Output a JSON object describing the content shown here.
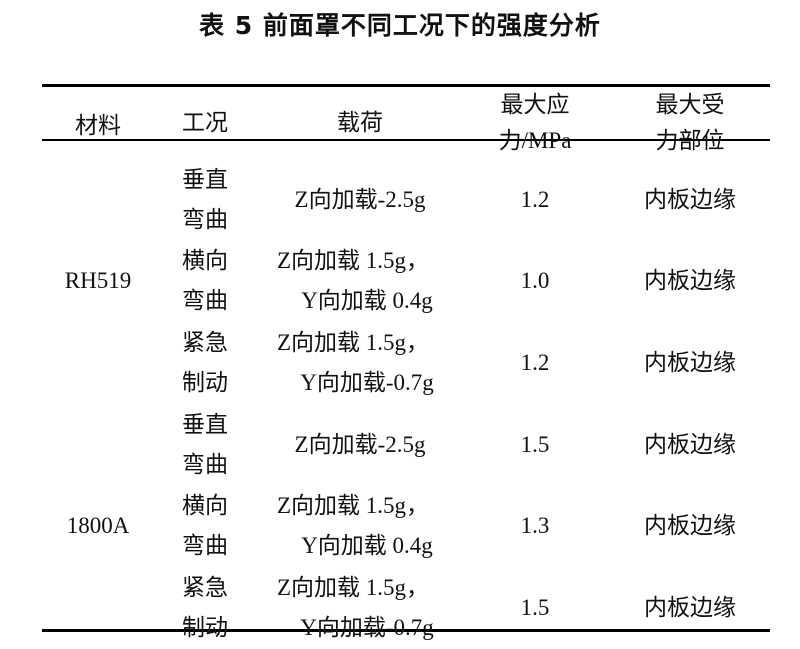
{
  "title": "表 5  前面罩不同工况下的强度分析",
  "headers": {
    "material": "材料",
    "condition": "工况",
    "load": "载荷",
    "stress": [
      "最大应",
      "力/MPa"
    ],
    "position": [
      "最大受",
      "力部位"
    ]
  },
  "rows": [
    {
      "material": "RH519",
      "condition": [
        "垂直",
        "弯曲"
      ],
      "load": [
        "Z向加载-2.5g"
      ],
      "stress": "1.2",
      "position": "内板边缘"
    },
    {
      "material": "RH519",
      "condition": [
        "横向",
        "弯曲"
      ],
      "load": [
        "Z向加载 1.5g，",
        "Y向加载 0.4g"
      ],
      "stress": "1.0",
      "position": "内板边缘"
    },
    {
      "material": "RH519",
      "condition": [
        "紧急",
        "制动"
      ],
      "load": [
        "Z向加载 1.5g，",
        "Y向加载-0.7g"
      ],
      "stress": "1.2",
      "position": "内板边缘"
    },
    {
      "material": "1800A",
      "condition": [
        "垂直",
        "弯曲"
      ],
      "load": [
        "Z向加载-2.5g"
      ],
      "stress": "1.5",
      "position": "内板边缘"
    },
    {
      "material": "1800A",
      "condition": [
        "横向",
        "弯曲"
      ],
      "load": [
        "Z向加载 1.5g，",
        "Y向加载 0.4g"
      ],
      "stress": "1.3",
      "position": "内板边缘"
    },
    {
      "material": "1800A",
      "condition": [
        "紧急",
        "制动"
      ],
      "load": [
        "Z向加载 1.5g，",
        "Y向加载-0.7g"
      ],
      "stress": "1.5",
      "position": "内板边缘"
    }
  ]
}
